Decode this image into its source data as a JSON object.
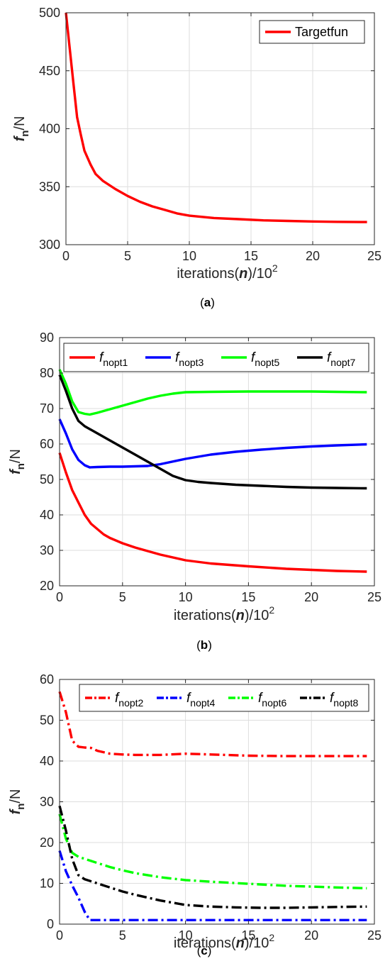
{
  "chart_data": [
    {
      "type": "line",
      "panel": "a",
      "caption_open": "(",
      "caption_letter": "a",
      "caption_close": ")",
      "xlabel_prefix": "iterations(",
      "xlabel_var": "n",
      "xlabel_suffix": ")/10",
      "xlabel_exp": "2",
      "ylabel_var": "f",
      "ylabel_sub": "n",
      "ylabel_unit": "/N",
      "xlim": [
        0,
        25
      ],
      "ylim": [
        300,
        500
      ],
      "xticks": [
        "0",
        "5",
        "10",
        "15",
        "20",
        "25"
      ],
      "yticks": [
        "300",
        "350",
        "400",
        "450",
        "500"
      ],
      "grid": true,
      "legend_position": "top-right",
      "series": [
        {
          "name": "Targetfun",
          "color": "#ff0000",
          "dash": "solid",
          "x": [
            0,
            0.3,
            0.6,
            0.9,
            1.2,
            1.5,
            2.0,
            2.4,
            3.0,
            4.0,
            5.0,
            6.0,
            7.0,
            8.0,
            9.0,
            10.0,
            12.0,
            14.0,
            16.0,
            18.0,
            20.0,
            22.0,
            24.4
          ],
          "y": [
            500,
            470,
            440,
            410,
            395,
            381,
            369,
            361,
            355,
            348,
            342,
            337,
            333,
            330,
            327,
            325,
            323,
            322,
            321,
            320.5,
            320,
            319.7,
            319.5
          ]
        }
      ]
    },
    {
      "type": "line",
      "panel": "b",
      "caption_open": "(",
      "caption_letter": "b",
      "caption_close": ")",
      "xlabel_prefix": "iterations(",
      "xlabel_var": "n",
      "xlabel_suffix": ")/10",
      "xlabel_exp": "2",
      "ylabel_var": "f",
      "ylabel_sub": "n",
      "ylabel_unit": "/N",
      "xlim": [
        0,
        25
      ],
      "ylim": [
        20,
        90
      ],
      "xticks": [
        "0",
        "5",
        "10",
        "15",
        "20",
        "25"
      ],
      "yticks": [
        "20",
        "30",
        "40",
        "50",
        "60",
        "70",
        "80",
        "90"
      ],
      "grid": true,
      "legend_position": "top",
      "series": [
        {
          "name_var": "f",
          "name_sub": "nopt1",
          "color": "#ff0000",
          "dash": "solid",
          "x": [
            0,
            0.5,
            1.0,
            1.5,
            2.0,
            2.5,
            3.0,
            3.5,
            4.0,
            5.0,
            6.0,
            7.0,
            8.0,
            10.0,
            12.0,
            15.0,
            18.0,
            20.0,
            22.0,
            24.4
          ],
          "y": [
            57.5,
            52,
            47,
            43.5,
            40,
            37.5,
            36,
            34.5,
            33.5,
            32,
            30.8,
            29.8,
            28.8,
            27.2,
            26.3,
            25.5,
            24.8,
            24.5,
            24.2,
            24
          ]
        },
        {
          "name_var": "f",
          "name_sub": "nopt3",
          "color": "#0000ff",
          "dash": "solid",
          "x": [
            0,
            0.5,
            1.0,
            1.5,
            2.0,
            2.4,
            3.0,
            4.0,
            5.0,
            6.0,
            7.0,
            8.0,
            10.0,
            12.0,
            14.0,
            16.0,
            18.0,
            20.0,
            22.0,
            24.4
          ],
          "y": [
            67,
            63,
            58.5,
            55.5,
            54,
            53.4,
            53.5,
            53.6,
            53.6,
            53.7,
            53.8,
            54.3,
            55.8,
            57,
            57.8,
            58.4,
            58.9,
            59.3,
            59.6,
            59.9
          ]
        },
        {
          "name_var": "f",
          "name_sub": "nopt5",
          "color": "#00ff00",
          "dash": "solid",
          "x": [
            0,
            0.5,
            1.0,
            1.5,
            2.0,
            2.4,
            3.0,
            4.0,
            5.0,
            6.0,
            7.0,
            8.0,
            9.0,
            10.0,
            12.0,
            15.0,
            18.0,
            20.0,
            22.0,
            24.4
          ],
          "y": [
            81,
            77,
            72,
            69,
            68.5,
            68.3,
            68.8,
            69.8,
            70.8,
            71.8,
            72.8,
            73.6,
            74.2,
            74.6,
            74.7,
            74.8,
            74.8,
            74.8,
            74.7,
            74.6
          ]
        },
        {
          "name_var": "f",
          "name_sub": "nopt7",
          "color": "#000000",
          "dash": "solid",
          "x": [
            0,
            0.5,
            1.0,
            1.5,
            2.0,
            3.0,
            4.0,
            5.0,
            6.0,
            7.0,
            8.0,
            9.0,
            10.0,
            11.0,
            12.0,
            14.0,
            16.0,
            18.0,
            20.0,
            22.0,
            24.4
          ],
          "y": [
            79.5,
            75,
            70,
            66.5,
            65,
            63,
            61,
            59,
            57,
            55,
            53,
            51,
            49.8,
            49.3,
            49,
            48.5,
            48.2,
            47.9,
            47.7,
            47.6,
            47.5
          ]
        }
      ]
    },
    {
      "type": "line",
      "panel": "c",
      "caption_open": "(",
      "caption_letter": "c",
      "caption_close": ")",
      "xlabel_prefix": "iterations(",
      "xlabel_var": "n",
      "xlabel_suffix": ")/10",
      "xlabel_exp": "2",
      "ylabel_var": "f",
      "ylabel_sub": "n",
      "ylabel_unit": "/N",
      "xlim": [
        0,
        25
      ],
      "ylim": [
        0,
        60
      ],
      "xticks": [
        "0",
        "5",
        "10",
        "15",
        "20",
        "25"
      ],
      "yticks": [
        "0",
        "10",
        "20",
        "30",
        "40",
        "50",
        "60"
      ],
      "grid": true,
      "legend_position": "top",
      "series": [
        {
          "name_var": "f",
          "name_sub": "nopt2",
          "color": "#ff0000",
          "dash": "dashdot",
          "x": [
            0,
            0.5,
            1.0,
            1.5,
            2.0,
            2.5,
            3.0,
            4.0,
            5.0,
            6.0,
            8.0,
            10.0,
            12.0,
            15.0,
            18.0,
            20.0,
            22.0,
            24.4
          ],
          "y": [
            57,
            52,
            45,
            43.5,
            43.3,
            43.2,
            42.5,
            41.8,
            41.6,
            41.5,
            41.5,
            41.8,
            41.6,
            41.3,
            41.2,
            41.2,
            41.2,
            41.2
          ]
        },
        {
          "name_var": "f",
          "name_sub": "nopt4",
          "color": "#0000ff",
          "dash": "dashdot",
          "x": [
            0,
            0.5,
            1.0,
            1.5,
            2.0,
            2.4,
            3.0,
            5.0,
            10.0,
            15.0,
            20.0,
            24.4
          ],
          "y": [
            18,
            13,
            9.5,
            6.5,
            3,
            1,
            1,
            1,
            1,
            1,
            1,
            1
          ]
        },
        {
          "name_var": "f",
          "name_sub": "nopt6",
          "color": "#00ff00",
          "dash": "dashdot",
          "x": [
            0,
            0.5,
            1.0,
            1.5,
            2.0,
            3.0,
            4.0,
            5.0,
            6.0,
            8.0,
            10.0,
            12.0,
            15.0,
            18.0,
            20.0,
            22.0,
            24.4
          ],
          "y": [
            27,
            21,
            17.5,
            16.5,
            16,
            15,
            14,
            13.2,
            12.5,
            11.5,
            10.8,
            10.4,
            9.9,
            9.4,
            9.2,
            9.0,
            8.8
          ]
        },
        {
          "name_var": "f",
          "name_sub": "nopt8",
          "color": "#000000",
          "dash": "dashdot",
          "x": [
            0,
            0.5,
            1.0,
            1.5,
            2.0,
            3.0,
            4.0,
            5.0,
            6.0,
            8.0,
            10.0,
            12.0,
            14.0,
            16.0,
            18.0,
            20.0,
            22.0,
            24.4
          ],
          "y": [
            29,
            23,
            16,
            12,
            11,
            10,
            9,
            8,
            7.2,
            5.8,
            4.7,
            4.3,
            4.1,
            4.0,
            4.0,
            4.1,
            4.2,
            4.3
          ]
        }
      ]
    }
  ]
}
